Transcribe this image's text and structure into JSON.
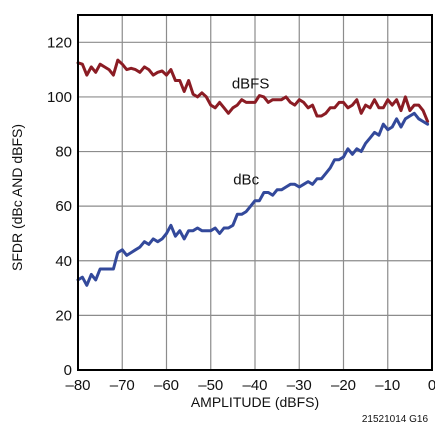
{
  "chart_data": {
    "type": "line",
    "xlabel": "AMPLITUDE (dBFS)",
    "ylabel": "SFDR (dBc AND dBFS)",
    "xlim": [
      -80,
      0
    ],
    "ylim": [
      0,
      130
    ],
    "xticks": [
      -80,
      -70,
      -60,
      -50,
      -40,
      -30,
      -20,
      -10,
      0
    ],
    "xtick_labels": [
      "–80",
      "–70",
      "–60",
      "–50",
      "–40",
      "–30",
      "–20",
      "–10",
      "0"
    ],
    "yticks": [
      0,
      20,
      40,
      60,
      80,
      100,
      120
    ],
    "ytick_labels": [
      "0",
      "20",
      "40",
      "60",
      "80",
      "100",
      "120"
    ],
    "grid": true,
    "figure_code": "21521014 G16",
    "series": [
      {
        "name": "dBFS",
        "color": "#8b1c24",
        "x": [
          -80,
          -79,
          -78,
          -77,
          -76,
          -75,
          -74,
          -73,
          -72,
          -71,
          -70,
          -69,
          -68,
          -67,
          -66,
          -65,
          -64,
          -63,
          -62,
          -61,
          -60,
          -59,
          -58,
          -57,
          -56,
          -55,
          -54,
          -53,
          -52,
          -51,
          -50,
          -49,
          -48,
          -47,
          -46,
          -45,
          -44,
          -43,
          -42,
          -41,
          -40,
          -39,
          -38,
          -37,
          -36,
          -35,
          -34,
          -33,
          -32,
          -31,
          -30,
          -29,
          -28,
          -27,
          -26,
          -25,
          -24,
          -23,
          -22,
          -21,
          -20,
          -19,
          -18,
          -17,
          -16,
          -15,
          -14,
          -13,
          -12,
          -11,
          -10,
          -9,
          -8,
          -7,
          -6,
          -5,
          -4,
          -3,
          -2,
          -1
        ],
        "values": [
          112.5,
          112,
          108,
          111,
          109,
          112,
          111,
          110,
          108,
          113.5,
          112,
          110,
          110.5,
          110,
          109,
          111,
          110,
          108,
          109,
          109.5,
          108,
          110,
          106,
          106,
          102,
          106,
          101,
          100,
          101.5,
          100,
          97,
          96,
          98,
          96,
          94,
          96,
          97,
          99,
          98,
          98,
          98,
          100.5,
          100,
          98,
          99,
          99,
          99,
          100,
          98,
          97,
          99,
          98,
          96,
          97,
          93,
          93,
          94,
          96,
          96,
          98,
          98,
          96,
          97,
          99,
          94,
          97,
          96,
          99,
          96,
          96,
          99,
          97,
          99,
          95,
          100,
          95,
          97,
          97,
          95,
          91
        ]
      },
      {
        "name": "dBc",
        "color": "#33499b",
        "x": [
          -80,
          -79,
          -78,
          -77,
          -76,
          -75,
          -74,
          -73,
          -72,
          -71,
          -70,
          -69,
          -68,
          -67,
          -66,
          -65,
          -64,
          -63,
          -62,
          -61,
          -60,
          -59,
          -58,
          -57,
          -56,
          -55,
          -54,
          -53,
          -52,
          -51,
          -50,
          -49,
          -48,
          -47,
          -46,
          -45,
          -44,
          -43,
          -42,
          -41,
          -40,
          -39,
          -38,
          -37,
          -36,
          -35,
          -34,
          -33,
          -32,
          -31,
          -30,
          -29,
          -28,
          -27,
          -26,
          -25,
          -24,
          -23,
          -22,
          -21,
          -20,
          -19,
          -18,
          -17,
          -16,
          -15,
          -14,
          -13,
          -12,
          -11,
          -10,
          -9,
          -8,
          -7,
          -6,
          -5,
          -4,
          -3,
          -2,
          -1
        ],
        "values": [
          33,
          34,
          31,
          35,
          33,
          37,
          37,
          37,
          37,
          43,
          44,
          42,
          43,
          44,
          45,
          47,
          46,
          48,
          47,
          48,
          50,
          53,
          49,
          51,
          48,
          51,
          51,
          52,
          51,
          51,
          51,
          52,
          50,
          52,
          52,
          53,
          57,
          57,
          58,
          60,
          62,
          62,
          65,
          65,
          64,
          66,
          66,
          67,
          68,
          68,
          67,
          68,
          69,
          68,
          70,
          70,
          72,
          74,
          77,
          77,
          78,
          81,
          79,
          81,
          80,
          83,
          85,
          87,
          86,
          90,
          88,
          89,
          92,
          89,
          92,
          93,
          94,
          92,
          91,
          90
        ]
      }
    ],
    "annotations": [
      {
        "text": "dBFS",
        "x": -41,
        "y": 103
      },
      {
        "text": "dBc",
        "x": -42,
        "y": 68
      }
    ]
  }
}
